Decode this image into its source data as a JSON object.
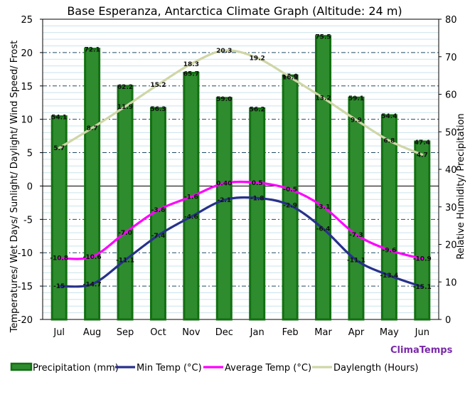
{
  "chart_data": {
    "type": "bar",
    "title": "Base Esperanza, Antarctica Climate Graph (Altitude: 24 m)",
    "ylabel_left": "Temperatures/ Wet Days/ Sunlight/ Daylight/ Wind Speed/ Frost",
    "ylabel_right": "Relative Humidity/ Precipitation",
    "ylim_left": [
      -20,
      25
    ],
    "ylim_right": [
      0,
      80
    ],
    "yticks_left": [
      "-20",
      "-15",
      "-10",
      "-5",
      "0",
      "5",
      "10",
      "15",
      "20",
      "25"
    ],
    "yticks_right": [
      "0",
      "10",
      "20",
      "30",
      "40",
      "50",
      "60",
      "70",
      "80"
    ],
    "categories": [
      "Jul",
      "Aug",
      "Sep",
      "Oct",
      "Nov",
      "Dec",
      "Jan",
      "Feb",
      "Mar",
      "Apr",
      "May",
      "Jun"
    ],
    "watermark": "ClimaTemps",
    "series": [
      {
        "name": "Precipitation (mm)",
        "kind": "bar",
        "axis": "right",
        "color": "#2e8b2e",
        "border": "#127012",
        "values": [
          54.1,
          72.1,
          62.2,
          56.3,
          65.7,
          59.0,
          56.2,
          65.0,
          75.5,
          59.1,
          54.4,
          47.4
        ]
      },
      {
        "name": "Min Temp (°C)",
        "kind": "line",
        "axis": "left",
        "color": "#27318a",
        "values": [
          -15,
          -14.7,
          -11.1,
          -7.4,
          -4.6,
          -2.1,
          -1.8,
          -2.9,
          -6.4,
          -11.1,
          -13.4,
          -15.1
        ],
        "labels": [
          "-15",
          "-14.7",
          "-11.1",
          "-7.4",
          "-4.6",
          "-2.1",
          "-1.8",
          "-2.9",
          "-6.4",
          "-11.1",
          "-13.4",
          "-15.1"
        ]
      },
      {
        "name": "Average Temp (°C)",
        "kind": "line",
        "axis": "left",
        "color": "#ff00ff",
        "values": [
          -10.8,
          -10.6,
          -7.0,
          -3.6,
          -1.6,
          0.4,
          0.5,
          -0.5,
          -3.1,
          -7.3,
          -9.6,
          -10.9
        ],
        "labels": [
          "-10.8",
          "-10.6",
          "-7.0",
          "-3.6",
          "-1.6",
          "0.40",
          "0.5",
          "-0.5",
          "-3.1",
          "-7.3",
          "-9.6",
          "-10.9"
        ]
      },
      {
        "name": "Daylength (Hours)",
        "kind": "line",
        "axis": "left",
        "color": "#cfd6a6",
        "values": [
          5.7,
          8.7,
          11.9,
          15.2,
          18.3,
          20.3,
          19.2,
          16.3,
          13.2,
          9.9,
          6.8,
          4.7
        ],
        "labels": [
          "5.7",
          "8.7",
          "11.9",
          "15.2",
          "18.3",
          "20.3",
          "19.2",
          "16.3",
          "13.2",
          "9.9",
          "6.8",
          "4.7"
        ]
      }
    ],
    "grid": "dashed horizontal",
    "legend_placement": "bottom"
  }
}
